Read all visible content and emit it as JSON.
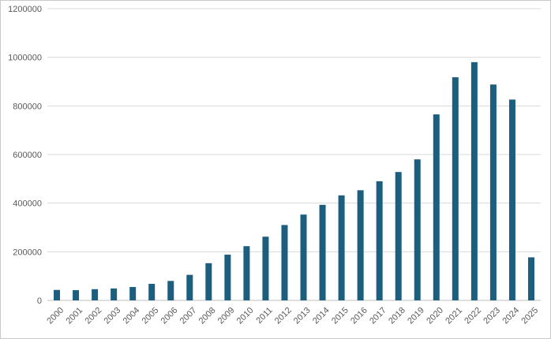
{
  "chart_data": {
    "type": "bar",
    "title": "",
    "xlabel": "",
    "ylabel": "",
    "categories": [
      "2000",
      "2001",
      "2002",
      "2003",
      "2004",
      "2005",
      "2006",
      "2007",
      "2008",
      "2009",
      "2010",
      "2011",
      "2012",
      "2013",
      "2014",
      "2015",
      "2016",
      "2017",
      "2018",
      "2019",
      "2020",
      "2021",
      "2022",
      "2023",
      "2024",
      "2025"
    ],
    "values": [
      43000,
      42000,
      46000,
      49000,
      55000,
      68000,
      80000,
      105000,
      153000,
      188000,
      223000,
      262000,
      310000,
      353000,
      393000,
      432000,
      453000,
      490000,
      528000,
      580000,
      765000,
      918000,
      980000,
      888000,
      826000,
      177000
    ],
    "ylim": [
      0,
      1200000
    ],
    "yticks": [
      0,
      200000,
      400000,
      600000,
      800000,
      1000000,
      1200000
    ],
    "ytick_labels": [
      "0",
      "200000",
      "400000",
      "600000",
      "800000",
      "1000000",
      "1200000"
    ],
    "grid": true,
    "bar_color": "#1b5e7e",
    "legend": "none"
  }
}
